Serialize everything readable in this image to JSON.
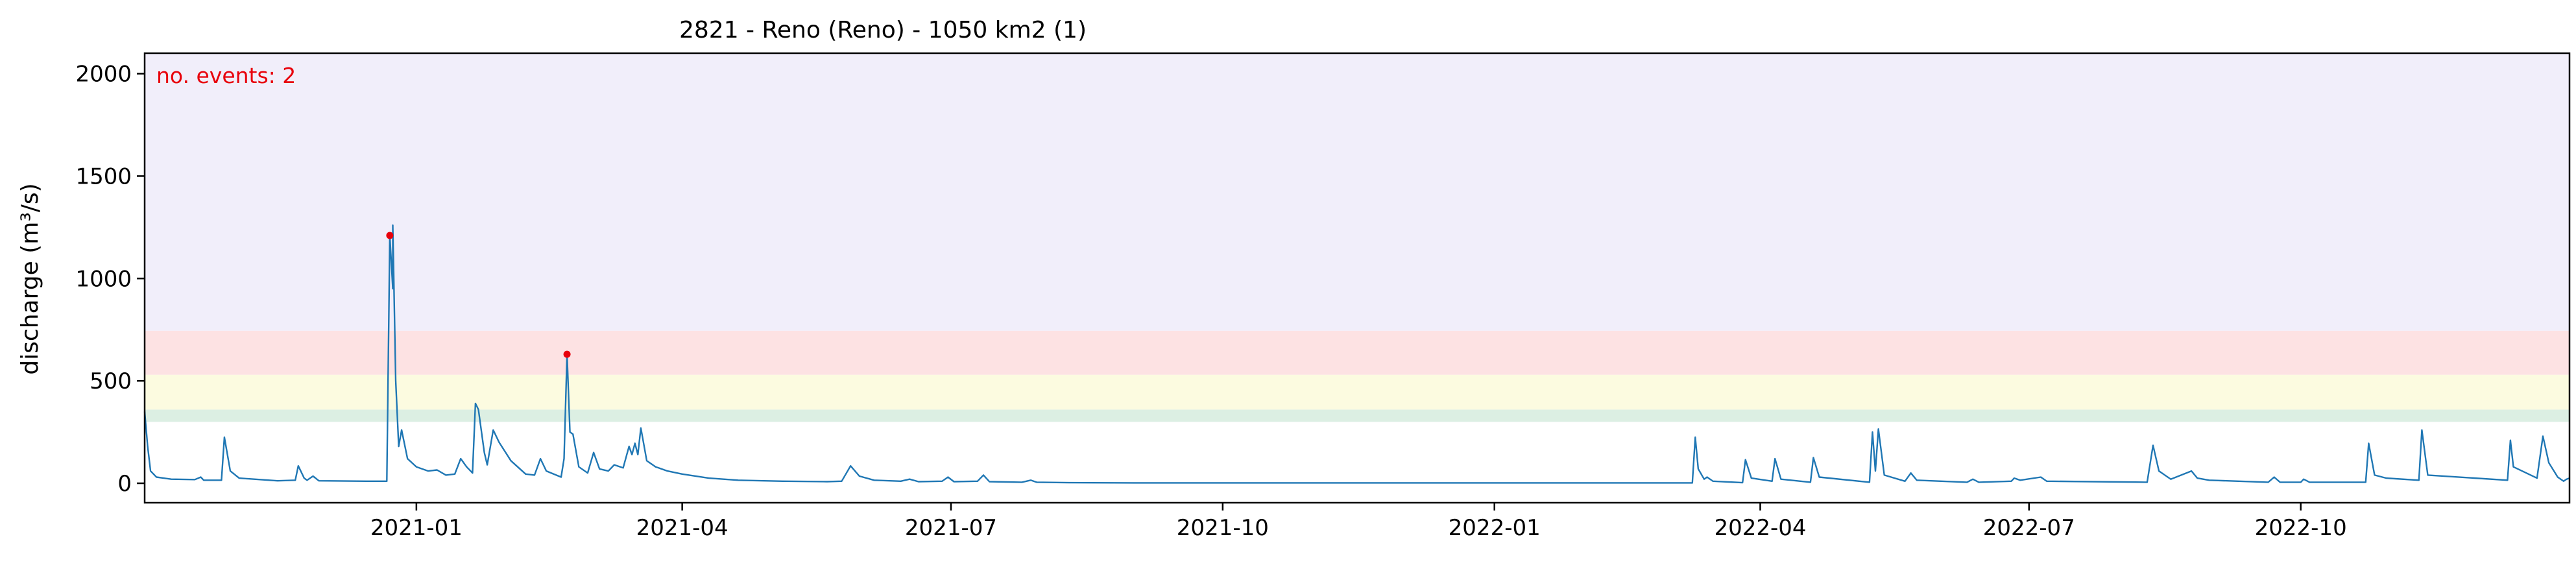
{
  "chart_data": {
    "type": "line",
    "title": "2821 - Reno (Reno) - 1050 km2 (1)",
    "xlabel": "",
    "ylabel": "discharge (m³/s)",
    "xlim": [
      "2020-10-01",
      "2022-12-31"
    ],
    "ylim": [
      -95,
      2100
    ],
    "grid": false,
    "y_ticks": [
      0,
      500,
      1000,
      1500,
      2000
    ],
    "x_ticks": [
      {
        "date": "2021-01-01",
        "label": "2021-01"
      },
      {
        "date": "2021-04-01",
        "label": "2021-04"
      },
      {
        "date": "2021-07-01",
        "label": "2021-07"
      },
      {
        "date": "2021-10-01",
        "label": "2021-10"
      },
      {
        "date": "2022-01-01",
        "label": "2022-01"
      },
      {
        "date": "2022-04-01",
        "label": "2022-04"
      },
      {
        "date": "2022-07-01",
        "label": "2022-07"
      },
      {
        "date": "2022-10-01",
        "label": "2022-10"
      }
    ],
    "bands": [
      {
        "ymin": 300,
        "ymax": 360,
        "color": "#dcefe3"
      },
      {
        "ymin": 360,
        "ymax": 530,
        "color": "#fcfbe0"
      },
      {
        "ymin": 530,
        "ymax": 745,
        "color": "#fde2e3"
      },
      {
        "ymin": 745,
        "ymax": 2100,
        "color": "#f1eefa"
      }
    ],
    "annotation": "no. events: 2",
    "series": [
      {
        "color": "#1f77b4",
        "points": [
          [
            "2020-10-01",
            350
          ],
          [
            "2020-10-02",
            180
          ],
          [
            "2020-10-03",
            60
          ],
          [
            "2020-10-05",
            30
          ],
          [
            "2020-10-10",
            20
          ],
          [
            "2020-10-18",
            18
          ],
          [
            "2020-10-20",
            30
          ],
          [
            "2020-10-21",
            15
          ],
          [
            "2020-10-27",
            15
          ],
          [
            "2020-10-28",
            225
          ],
          [
            "2020-10-30",
            60
          ],
          [
            "2020-11-02",
            25
          ],
          [
            "2020-11-15",
            12
          ],
          [
            "2020-11-21",
            15
          ],
          [
            "2020-11-22",
            85
          ],
          [
            "2020-11-24",
            25
          ],
          [
            "2020-11-25",
            15
          ],
          [
            "2020-11-27",
            35
          ],
          [
            "2020-11-29",
            12
          ],
          [
            "2020-12-15",
            10
          ],
          [
            "2020-12-22",
            10
          ],
          [
            "2020-12-23",
            1210
          ],
          [
            "2020-12-24",
            950
          ],
          [
            "2020-12-24",
            1260
          ],
          [
            "2020-12-25",
            500
          ],
          [
            "2020-12-26",
            180
          ],
          [
            "2020-12-27",
            260
          ],
          [
            "2020-12-29",
            120
          ],
          [
            "2021-01-01",
            80
          ],
          [
            "2021-01-05",
            60
          ],
          [
            "2021-01-08",
            65
          ],
          [
            "2021-01-11",
            40
          ],
          [
            "2021-01-14",
            45
          ],
          [
            "2021-01-16",
            120
          ],
          [
            "2021-01-18",
            80
          ],
          [
            "2021-01-20",
            50
          ],
          [
            "2021-01-21",
            390
          ],
          [
            "2021-01-22",
            360
          ],
          [
            "2021-01-24",
            150
          ],
          [
            "2021-01-25",
            90
          ],
          [
            "2021-01-27",
            260
          ],
          [
            "2021-01-29",
            200
          ],
          [
            "2021-02-02",
            110
          ],
          [
            "2021-02-07",
            45
          ],
          [
            "2021-02-10",
            40
          ],
          [
            "2021-02-12",
            120
          ],
          [
            "2021-02-14",
            60
          ],
          [
            "2021-02-19",
            30
          ],
          [
            "2021-02-20",
            120
          ],
          [
            "2021-02-21",
            630
          ],
          [
            "2021-02-22",
            250
          ],
          [
            "2021-02-23",
            240
          ],
          [
            "2021-02-25",
            80
          ],
          [
            "2021-02-28",
            50
          ],
          [
            "2021-03-02",
            150
          ],
          [
            "2021-03-04",
            70
          ],
          [
            "2021-03-07",
            60
          ],
          [
            "2021-03-09",
            90
          ],
          [
            "2021-03-12",
            75
          ],
          [
            "2021-03-14",
            180
          ],
          [
            "2021-03-15",
            140
          ],
          [
            "2021-03-16",
            195
          ],
          [
            "2021-03-17",
            140
          ],
          [
            "2021-03-18",
            270
          ],
          [
            "2021-03-20",
            110
          ],
          [
            "2021-03-23",
            80
          ],
          [
            "2021-03-27",
            60
          ],
          [
            "2021-04-01",
            45
          ],
          [
            "2021-04-10",
            25
          ],
          [
            "2021-04-20",
            15
          ],
          [
            "2021-05-05",
            10
          ],
          [
            "2021-05-20",
            8
          ],
          [
            "2021-05-25",
            10
          ],
          [
            "2021-05-28",
            85
          ],
          [
            "2021-05-31",
            35
          ],
          [
            "2021-06-05",
            15
          ],
          [
            "2021-06-14",
            10
          ],
          [
            "2021-06-17",
            20
          ],
          [
            "2021-06-20",
            8
          ],
          [
            "2021-06-28",
            10
          ],
          [
            "2021-06-30",
            30
          ],
          [
            "2021-07-02",
            8
          ],
          [
            "2021-07-10",
            10
          ],
          [
            "2021-07-12",
            40
          ],
          [
            "2021-07-14",
            8
          ],
          [
            "2021-07-25",
            5
          ],
          [
            "2021-07-28",
            15
          ],
          [
            "2021-07-30",
            5
          ],
          [
            "2021-08-10",
            3
          ],
          [
            "2021-09-01",
            2
          ],
          [
            "2021-10-01",
            2
          ],
          [
            "2021-10-25",
            2
          ],
          [
            "2021-11-05",
            2
          ],
          [
            "2021-12-25",
            2
          ],
          [
            "2022-02-15",
            2
          ],
          [
            "2022-03-09",
            2
          ],
          [
            "2022-03-10",
            225
          ],
          [
            "2022-03-11",
            70
          ],
          [
            "2022-03-13",
            20
          ],
          [
            "2022-03-14",
            30
          ],
          [
            "2022-03-16",
            10
          ],
          [
            "2022-03-26",
            3
          ],
          [
            "2022-03-27",
            115
          ],
          [
            "2022-03-29",
            25
          ],
          [
            "2022-04-05",
            10
          ],
          [
            "2022-04-06",
            120
          ],
          [
            "2022-04-08",
            20
          ],
          [
            "2022-04-18",
            5
          ],
          [
            "2022-04-19",
            125
          ],
          [
            "2022-04-21",
            30
          ],
          [
            "2022-05-08",
            5
          ],
          [
            "2022-05-09",
            250
          ],
          [
            "2022-05-10",
            60
          ],
          [
            "2022-05-11",
            265
          ],
          [
            "2022-05-13",
            40
          ],
          [
            "2022-05-20",
            10
          ],
          [
            "2022-05-22",
            50
          ],
          [
            "2022-05-24",
            15
          ],
          [
            "2022-06-10",
            5
          ],
          [
            "2022-06-12",
            20
          ],
          [
            "2022-06-14",
            5
          ],
          [
            "2022-06-25",
            10
          ],
          [
            "2022-06-26",
            25
          ],
          [
            "2022-06-28",
            15
          ],
          [
            "2022-07-05",
            30
          ],
          [
            "2022-07-07",
            10
          ],
          [
            "2022-08-10",
            5
          ],
          [
            "2022-08-12",
            185
          ],
          [
            "2022-08-14",
            60
          ],
          [
            "2022-08-18",
            20
          ],
          [
            "2022-08-25",
            60
          ],
          [
            "2022-08-27",
            25
          ],
          [
            "2022-08-31",
            15
          ],
          [
            "2022-09-20",
            5
          ],
          [
            "2022-09-22",
            30
          ],
          [
            "2022-09-24",
            5
          ],
          [
            "2022-10-01",
            5
          ],
          [
            "2022-10-02",
            20
          ],
          [
            "2022-10-04",
            5
          ],
          [
            "2022-10-23",
            5
          ],
          [
            "2022-10-24",
            195
          ],
          [
            "2022-10-26",
            40
          ],
          [
            "2022-10-30",
            25
          ],
          [
            "2022-11-10",
            15
          ],
          [
            "2022-11-11",
            260
          ],
          [
            "2022-11-13",
            40
          ],
          [
            "2022-12-10",
            15
          ],
          [
            "2022-12-11",
            210
          ],
          [
            "2022-12-12",
            80
          ],
          [
            "2022-12-20",
            25
          ],
          [
            "2022-12-22",
            230
          ],
          [
            "2022-12-24",
            100
          ],
          [
            "2022-12-27",
            30
          ],
          [
            "2022-12-29",
            10
          ],
          [
            "2022-12-30",
            20
          ],
          [
            "2022-12-31",
            25
          ]
        ]
      }
    ],
    "events": [
      {
        "date": "2020-12-23",
        "value": 1210
      },
      {
        "date": "2021-02-21",
        "value": 630
      }
    ]
  }
}
